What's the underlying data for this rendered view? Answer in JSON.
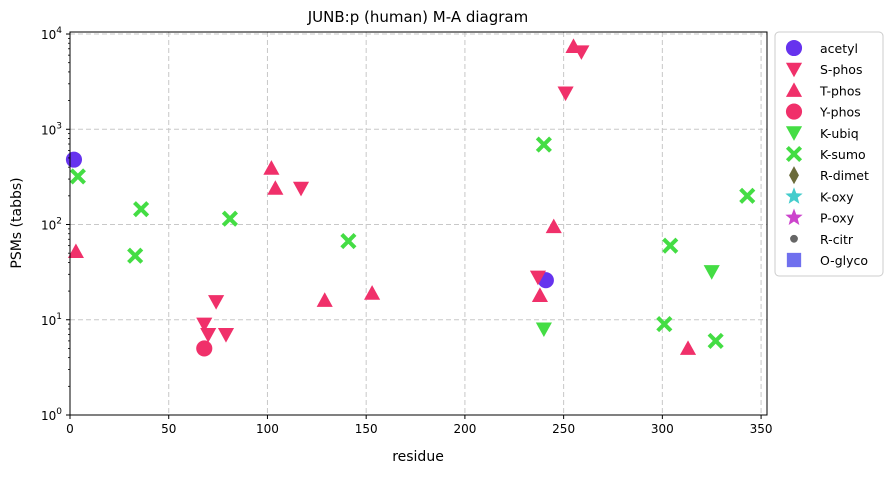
{
  "chart_data": {
    "type": "scatter",
    "title": "JUNB:p (human) M-A diagram",
    "xlabel": "residue",
    "ylabel": "PSMs (tabbs)",
    "xlim": [
      0,
      353
    ],
    "ylim": [
      1,
      10500
    ],
    "yscale": "log",
    "grid": true,
    "legend_position": "outside-right",
    "x_ticks": [
      0,
      50,
      100,
      150,
      200,
      250,
      300,
      350
    ],
    "y_ticks": [
      {
        "value": 1,
        "label_base": "10",
        "label_exp": "0"
      },
      {
        "value": 10,
        "label_base": "10",
        "label_exp": "1"
      },
      {
        "value": 100,
        "label_base": "10",
        "label_exp": "2"
      },
      {
        "value": 1000,
        "label_base": "10",
        "label_exp": "3"
      },
      {
        "value": 10000,
        "label_base": "10",
        "label_exp": "4"
      }
    ],
    "series": [
      {
        "name": "acetyl",
        "marker": "circle",
        "color": "#6633ee",
        "points": [
          {
            "x": 2,
            "y": 480
          },
          {
            "x": 241,
            "y": 26
          }
        ]
      },
      {
        "name": "S-phos",
        "marker": "triangle-down",
        "color": "#f0306a",
        "points": [
          {
            "x": 68,
            "y": 9
          },
          {
            "x": 70,
            "y": 7
          },
          {
            "x": 74,
            "y": 15.5
          },
          {
            "x": 79,
            "y": 7
          },
          {
            "x": 117,
            "y": 240
          },
          {
            "x": 237,
            "y": 28
          },
          {
            "x": 251,
            "y": 2400
          },
          {
            "x": 259,
            "y": 6500
          }
        ]
      },
      {
        "name": "T-phos",
        "marker": "triangle-up",
        "color": "#f0306a",
        "points": [
          {
            "x": 3,
            "y": 52
          },
          {
            "x": 102,
            "y": 390
          },
          {
            "x": 104,
            "y": 240
          },
          {
            "x": 129,
            "y": 16
          },
          {
            "x": 153,
            "y": 19
          },
          {
            "x": 238,
            "y": 18
          },
          {
            "x": 245,
            "y": 95
          },
          {
            "x": 255,
            "y": 7400
          },
          {
            "x": 313,
            "y": 5
          }
        ]
      },
      {
        "name": "Y-phos",
        "marker": "circle",
        "color": "#f0306a",
        "points": [
          {
            "x": 68,
            "y": 5
          }
        ]
      },
      {
        "name": "K-ubiq",
        "marker": "triangle-down",
        "color": "#44dd44",
        "points": [
          {
            "x": 240,
            "y": 8
          },
          {
            "x": 325,
            "y": 32
          }
        ]
      },
      {
        "name": "K-sumo",
        "marker": "x-thick",
        "color": "#44dd44",
        "points": [
          {
            "x": 4,
            "y": 320
          },
          {
            "x": 33,
            "y": 47
          },
          {
            "x": 36,
            "y": 145
          },
          {
            "x": 81,
            "y": 115
          },
          {
            "x": 141,
            "y": 67
          },
          {
            "x": 240,
            "y": 690
          },
          {
            "x": 301,
            "y": 9
          },
          {
            "x": 304,
            "y": 60
          },
          {
            "x": 327,
            "y": 6
          },
          {
            "x": 343,
            "y": 200
          }
        ]
      },
      {
        "name": "R-dimet",
        "marker": "diamond-thin",
        "color": "#6b6b3a",
        "points": []
      },
      {
        "name": "K-oxy",
        "marker": "star",
        "color": "#44cccc",
        "points": []
      },
      {
        "name": "P-oxy",
        "marker": "star",
        "color": "#cc44cc",
        "points": []
      },
      {
        "name": "R-citr",
        "marker": "small-circle",
        "color": "#666666",
        "points": []
      },
      {
        "name": "O-glyco",
        "marker": "square",
        "color": "#7070ee",
        "points": []
      }
    ]
  }
}
